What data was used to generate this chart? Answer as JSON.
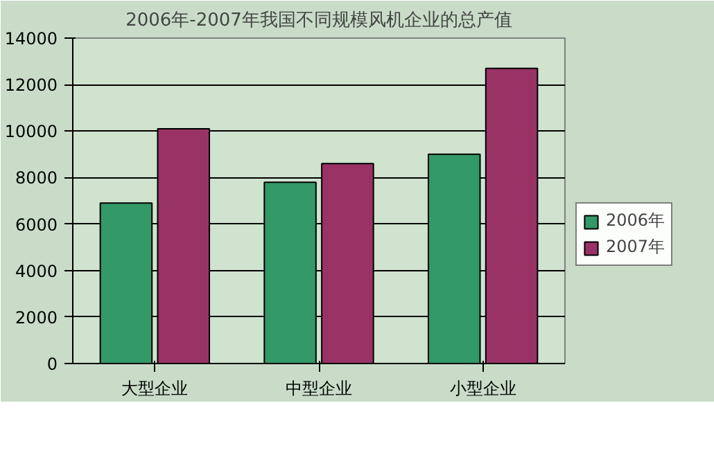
{
  "chart_data": {
    "type": "bar",
    "title": "2006年-2007年我国不同规模风机企业的总产值",
    "categories": [
      "大型企业",
      "中型企业",
      "小型企业"
    ],
    "series": [
      {
        "name": "2006年",
        "color": "#339966",
        "values": [
          6900,
          7800,
          9000
        ]
      },
      {
        "name": "2007年",
        "color": "#993366",
        "values": [
          10100,
          8600,
          12700
        ]
      }
    ],
    "ylim": [
      0,
      14000
    ],
    "yticks": [
      0,
      2000,
      4000,
      6000,
      8000,
      10000,
      12000,
      14000
    ],
    "grid": "y",
    "legend": "right"
  }
}
